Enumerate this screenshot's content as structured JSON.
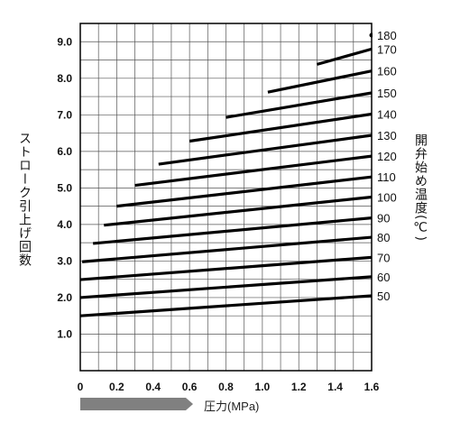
{
  "chart_data": {
    "type": "line",
    "ylabel": "ストローク引上げ回数",
    "y2label": "開弁始め温度(℃)",
    "xlabel": "圧力(MPa)",
    "xlim": [
      0,
      1.6
    ],
    "ylim": [
      0,
      9.5
    ],
    "x_ticks": [
      "0",
      "0.2",
      "0.4",
      "0.6",
      "0.8",
      "1.0",
      "1.2",
      "1.4",
      "1.6"
    ],
    "y_ticks": [
      "1.0",
      "2.0",
      "3.0",
      "4.0",
      "5.0",
      "6.0",
      "7.0",
      "8.0",
      "9.0"
    ],
    "grid": true,
    "series": [
      {
        "name": "50",
        "x": [
          0.0,
          1.6
        ],
        "y": [
          1.5,
          2.05
        ]
      },
      {
        "name": "60",
        "x": [
          0.0,
          1.6
        ],
        "y": [
          2.0,
          2.57
        ]
      },
      {
        "name": "70",
        "x": [
          0.0,
          1.6
        ],
        "y": [
          2.49,
          3.1
        ]
      },
      {
        "name": "80",
        "x": [
          0.01,
          1.6
        ],
        "y": [
          2.98,
          3.65
        ]
      },
      {
        "name": "90",
        "x": [
          0.07,
          1.6
        ],
        "y": [
          3.48,
          4.18
        ]
      },
      {
        "name": "100",
        "x": [
          0.13,
          1.6
        ],
        "y": [
          3.98,
          4.75
        ]
      },
      {
        "name": "110",
        "x": [
          0.2,
          1.6
        ],
        "y": [
          4.5,
          5.3
        ]
      },
      {
        "name": "120",
        "x": [
          0.3,
          1.6
        ],
        "y": [
          5.07,
          5.87
        ]
      },
      {
        "name": "130",
        "x": [
          0.43,
          1.6
        ],
        "y": [
          5.65,
          6.44
        ]
      },
      {
        "name": "140",
        "x": [
          0.6,
          1.6
        ],
        "y": [
          6.28,
          7.02
        ]
      },
      {
        "name": "150",
        "x": [
          0.8,
          1.6
        ],
        "y": [
          6.93,
          7.6
        ]
      },
      {
        "name": "160",
        "x": [
          1.03,
          1.6
        ],
        "y": [
          7.62,
          8.2
        ]
      },
      {
        "name": "170",
        "x": [
          1.3,
          1.6
        ],
        "y": [
          8.38,
          8.8
        ]
      },
      {
        "name": "180",
        "x": [
          1.6,
          1.6
        ],
        "y": [
          9.18,
          9.18
        ]
      }
    ]
  }
}
